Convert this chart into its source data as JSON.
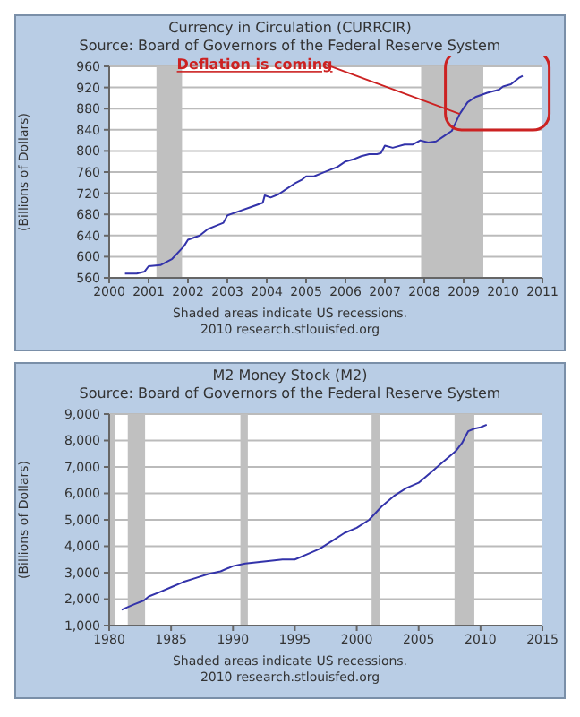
{
  "chart_data": [
    {
      "type": "line",
      "title": "Currency in Circulation (CURRCIR)",
      "subtitle": "Source: Board of Governors of the Federal Reserve System",
      "ylabel": "(Billions of Dollars)",
      "annotations": [
        {
          "text": "Deflation is coming",
          "x": 2008.9,
          "y": 870
        },
        "Shaded areas indicate US recessions.",
        "2010 research.stlouisfed.org"
      ],
      "xlim": [
        2000,
        2011
      ],
      "xticks": [
        2000,
        2001,
        2002,
        2003,
        2004,
        2005,
        2006,
        2007,
        2008,
        2009,
        2010,
        2011
      ],
      "ylim": [
        560,
        960
      ],
      "yticks": [
        560,
        600,
        640,
        680,
        720,
        760,
        800,
        840,
        880,
        920,
        960
      ],
      "grid": "y",
      "marker": "none",
      "line_style": "solid",
      "bands": [
        {
          "axis": "x",
          "from": 2001.2,
          "to": 2001.85,
          "color": "#c0c0c0"
        },
        {
          "axis": "x",
          "from": 2007.92,
          "to": 2009.5,
          "color": "#c0c0c0"
        }
      ],
      "series": [
        {
          "color": "#3333aa",
          "x": [
            2000.4,
            2000.7,
            2000.9,
            2001.0,
            2001.3,
            2001.6,
            2001.9,
            2002.0,
            2002.3,
            2002.5,
            2002.7,
            2002.9,
            2003.0,
            2003.3,
            2003.6,
            2003.9,
            2003.95,
            2004.1,
            2004.3,
            2004.5,
            2004.7,
            2004.9,
            2005.0,
            2005.2,
            2005.4,
            2005.6,
            2005.8,
            2006.0,
            2006.2,
            2006.4,
            2006.6,
            2006.8,
            2006.9,
            2007.0,
            2007.2,
            2007.5,
            2007.7,
            2007.9,
            2008.1,
            2008.3,
            2008.5,
            2008.7,
            2008.9,
            2009.1,
            2009.3,
            2009.6,
            2009.9,
            2010.0,
            2010.2,
            2010.4,
            2010.5
          ],
          "values": [
            568,
            568,
            572,
            582,
            584,
            596,
            620,
            632,
            640,
            652,
            658,
            664,
            678,
            686,
            694,
            702,
            716,
            712,
            718,
            728,
            738,
            746,
            752,
            752,
            758,
            764,
            770,
            780,
            784,
            790,
            794,
            794,
            796,
            810,
            806,
            812,
            812,
            820,
            816,
            818,
            828,
            838,
            870,
            892,
            902,
            910,
            916,
            922,
            926,
            938,
            942
          ]
        }
      ]
    },
    {
      "type": "line",
      "title": "M2 Money Stock (M2)",
      "subtitle": "Source: Board of Governors of the Federal Reserve System",
      "ylabel": "(Billions of Dollars)",
      "annotations": [
        "Shaded areas indicate US recessions.",
        "2010 research.stlouisfed.org"
      ],
      "xlim": [
        1980,
        2015
      ],
      "xticks": [
        1980,
        1985,
        1990,
        1995,
        2000,
        2005,
        2010,
        2015
      ],
      "ylim": [
        1000,
        9000
      ],
      "yticks": [
        {
          "value": 1000,
          "label": "1,000"
        },
        {
          "value": 2000,
          "label": "2,000"
        },
        {
          "value": 3000,
          "label": "3,000"
        },
        {
          "value": 4000,
          "label": "4,000"
        },
        {
          "value": 5000,
          "label": "5,000"
        },
        {
          "value": 6000,
          "label": "6,000"
        },
        {
          "value": 7000,
          "label": "7,000"
        },
        {
          "value": 8000,
          "label": "8,000"
        },
        {
          "value": 9000,
          "label": "9,000"
        }
      ],
      "grid": "y",
      "marker": "none",
      "line_style": "solid",
      "bands": [
        {
          "axis": "x",
          "from": 1980.0,
          "to": 1980.5,
          "color": "#c0c0c0"
        },
        {
          "axis": "x",
          "from": 1981.5,
          "to": 1982.9,
          "color": "#c0c0c0"
        },
        {
          "axis": "x",
          "from": 1990.6,
          "to": 1991.2,
          "color": "#c0c0c0"
        },
        {
          "axis": "x",
          "from": 2001.2,
          "to": 2001.9,
          "color": "#c0c0c0"
        },
        {
          "axis": "x",
          "from": 2007.9,
          "to": 2009.5,
          "color": "#c0c0c0"
        }
      ],
      "series": [
        {
          "color": "#3333aa",
          "x": [
            1981.0,
            1982.0,
            1982.8,
            1983.2,
            1984,
            1985,
            1986,
            1987,
            1988,
            1989,
            1990,
            1991,
            1992,
            1993,
            1994,
            1995,
            1996,
            1997,
            1998,
            1999,
            2000,
            2001,
            2002,
            2003,
            2004,
            2005,
            2006,
            2007,
            2008,
            2008.5,
            2009,
            2009.5,
            2010,
            2010.5
          ],
          "values": [
            1600,
            1800,
            1950,
            2100,
            2250,
            2450,
            2650,
            2800,
            2950,
            3050,
            3250,
            3350,
            3400,
            3450,
            3500,
            3500,
            3700,
            3900,
            4200,
            4500,
            4700,
            5000,
            5500,
            5900,
            6200,
            6400,
            6800,
            7200,
            7600,
            7900,
            8350,
            8450,
            8500,
            8600
          ]
        }
      ]
    }
  ]
}
